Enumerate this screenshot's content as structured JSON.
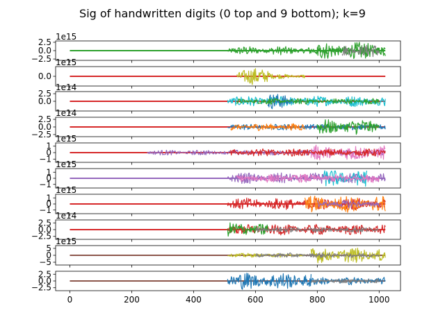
{
  "figure": {
    "title": "Sig of handwritten digits (0 top and 9 bottom); k=9"
  },
  "chart_data": {
    "type": "line",
    "title": "Sig of handwritten digits (0 top and 9 bottom); k=9",
    "shared_x": {
      "xlim": [
        -46,
        1069
      ],
      "ticks": [
        0,
        200,
        400,
        600,
        800,
        1000
      ],
      "tick_labels": [
        "0",
        "200",
        "400",
        "600",
        "800",
        "1000"
      ]
    },
    "subplots": [
      {
        "digit": 0,
        "offset_label": "1e15",
        "ylim": [
          -2.9,
          2.9
        ],
        "yticks": [
          2.5,
          0.0,
          -2.5
        ],
        "ytick_labels": [
          "2.5",
          "0.0",
          "−2.5"
        ],
        "segments": [
          {
            "start": 510,
            "end": 1020,
            "amplitude": 1.3,
            "series": 2
          },
          {
            "start": 800,
            "end": 1020,
            "amplitude": 2.6,
            "series": 2
          },
          {
            "start": 880,
            "end": 1000,
            "amplitude": 1.9,
            "series": 7
          }
        ],
        "flat_series": 2
      },
      {
        "digit": 1,
        "offset_label": "1e15",
        "ylim": [
          -3.2,
          3.2
        ],
        "yticks": [
          0.0
        ],
        "ytick_labels": [
          "0.0"
        ],
        "segments": [
          {
            "start": 540,
            "end": 650,
            "amplitude": 2.8,
            "series": 8
          },
          {
            "start": 650,
            "end": 760,
            "amplitude": 0.8,
            "series": 8
          }
        ],
        "flat_series": 3
      },
      {
        "digit": 2,
        "offset_label": "1e14",
        "ylim": [
          -3.2,
          3.2
        ],
        "yticks": [
          2.5,
          0.0
        ],
        "ytick_labels": [
          "2.5",
          "0.0"
        ],
        "segments": [
          {
            "start": 510,
            "end": 1020,
            "amplitude": 1.8,
            "series": 9
          },
          {
            "start": 640,
            "end": 720,
            "amplitude": 2.6,
            "series": 0
          },
          {
            "start": 540,
            "end": 1000,
            "amplitude": 1.0,
            "series": 2
          }
        ],
        "flat_series": 3
      },
      {
        "digit": 3,
        "offset_label": "1e14",
        "ylim": [
          -3.2,
          3.2
        ],
        "yticks": [
          2.5,
          0.0,
          -2.5
        ],
        "ytick_labels": [
          "2.5",
          "0.0",
          "−2.5"
        ],
        "segments": [
          {
            "start": 510,
            "end": 1020,
            "amplitude": 1.0,
            "series": 0
          },
          {
            "start": 800,
            "end": 1000,
            "amplitude": 2.6,
            "series": 2
          },
          {
            "start": 520,
            "end": 760,
            "amplitude": 1.2,
            "series": 1
          }
        ],
        "flat_series": 3
      },
      {
        "digit": 4,
        "offset_label": "1e15",
        "ylim": [
          -1.5,
          1.5
        ],
        "yticks": [
          1,
          0,
          -1
        ],
        "ytick_labels": [
          "1",
          "0",
          "−1"
        ],
        "segments": [
          {
            "start": 250,
            "end": 1020,
            "amplitude": 0.4,
            "series": 4
          },
          {
            "start": 780,
            "end": 1020,
            "amplitude": 1.2,
            "series": 6
          },
          {
            "start": 520,
            "end": 1020,
            "amplitude": 0.6,
            "series": 3
          }
        ],
        "flat_series": 3
      },
      {
        "digit": 5,
        "offset_label": "1e15",
        "ylim": [
          -1.6,
          1.6
        ],
        "yticks": [
          1,
          0,
          -1
        ],
        "ytick_labels": [
          "1",
          "0",
          "−1"
        ],
        "segments": [
          {
            "start": 510,
            "end": 1020,
            "amplitude": 0.9,
            "series": 4
          },
          {
            "start": 820,
            "end": 960,
            "amplitude": 1.4,
            "series": 9
          },
          {
            "start": 540,
            "end": 1000,
            "amplitude": 0.7,
            "series": 6
          }
        ],
        "flat_series": 4
      },
      {
        "digit": 6,
        "offset_label": "1e15",
        "ylim": [
          -1.6,
          1.6
        ],
        "yticks": [
          1,
          0,
          -1
        ],
        "ytick_labels": [
          "1",
          "0",
          "−1"
        ],
        "segments": [
          {
            "start": 510,
            "end": 1020,
            "amplitude": 1.0,
            "series": 3
          },
          {
            "start": 760,
            "end": 1020,
            "amplitude": 1.4,
            "series": 1
          },
          {
            "start": 800,
            "end": 1000,
            "amplitude": 0.6,
            "series": 4
          }
        ],
        "flat_series": 3
      },
      {
        "digit": 7,
        "offset_label": "1e14",
        "ylim": [
          -3.6,
          3.6
        ],
        "yticks": [
          2.5,
          0.0,
          -2.5
        ],
        "ytick_labels": [
          "2.5",
          "0.0",
          "−2.5"
        ],
        "segments": [
          {
            "start": 510,
            "end": 1020,
            "amplitude": 2.0,
            "series": 3
          },
          {
            "start": 510,
            "end": 640,
            "amplitude": 2.8,
            "series": 2
          },
          {
            "start": 600,
            "end": 1000,
            "amplitude": 1.0,
            "series": 7
          }
        ],
        "flat_series": 3
      },
      {
        "digit": 8,
        "offset_label": "1e15",
        "ylim": [
          -7,
          7
        ],
        "yticks": [
          5,
          0,
          -5
        ],
        "ytick_labels": [
          "5",
          "0",
          "−5"
        ],
        "segments": [
          {
            "start": 510,
            "end": 760,
            "amplitude": 1.5,
            "series": 8
          },
          {
            "start": 780,
            "end": 1020,
            "amplitude": 5.5,
            "series": 8
          },
          {
            "start": 600,
            "end": 1000,
            "amplitude": 1.8,
            "series": 7
          }
        ],
        "flat_series": 5
      },
      {
        "digit": 9,
        "offset_label": "",
        "ylim": [
          -3.6,
          3.6
        ],
        "yticks": [
          2.5,
          0.0,
          -2.5
        ],
        "ytick_labels": [
          "2.5",
          "0.0",
          "−2.5"
        ],
        "segments": [
          {
            "start": 510,
            "end": 780,
            "amplitude": 3.2,
            "series": 0
          },
          {
            "start": 780,
            "end": 1020,
            "amplitude": 1.5,
            "series": 0
          },
          {
            "start": 780,
            "end": 1000,
            "amplitude": 0.8,
            "series": 7
          }
        ],
        "flat_series": 5
      }
    ],
    "palette": [
      "#1f77b4",
      "#ff7f0e",
      "#2ca02c",
      "#d62728",
      "#9467bd",
      "#8c564b",
      "#e377c2",
      "#7f7f7f",
      "#bcbd22",
      "#17becf"
    ],
    "grid": false
  }
}
